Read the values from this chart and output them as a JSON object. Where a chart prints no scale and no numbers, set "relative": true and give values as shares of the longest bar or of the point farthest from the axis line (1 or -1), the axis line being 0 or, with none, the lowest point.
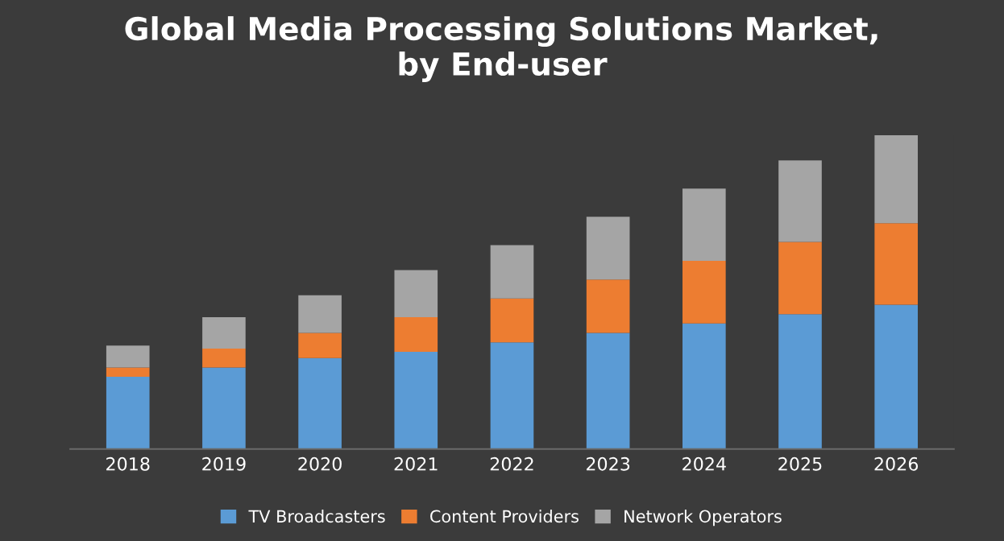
{
  "chart_data": {
    "type": "bar",
    "title": "Global Media Processing Solutions Market,\nby End-user",
    "categories": [
      "2018",
      "2019",
      "2020",
      "2021",
      "2022",
      "2023",
      "2024",
      "2025",
      "2026"
    ],
    "stacked": true,
    "relative": true,
    "legend": "bottom",
    "grid": false,
    "series": [
      {
        "name": "TV Broadcasters",
        "color": "#5b9bd5",
        "values": [
          0.23,
          0.26,
          0.29,
          0.31,
          0.34,
          0.37,
          0.4,
          0.43,
          0.46
        ]
      },
      {
        "name": "Content Providers",
        "color": "#ed7d31",
        "values": [
          0.03,
          0.06,
          0.08,
          0.11,
          0.14,
          0.17,
          0.2,
          0.23,
          0.26
        ]
      },
      {
        "name": "Network Operators",
        "color": "#a5a5a5",
        "values": [
          0.07,
          0.1,
          0.12,
          0.15,
          0.17,
          0.2,
          0.23,
          0.26,
          0.28
        ]
      }
    ]
  }
}
